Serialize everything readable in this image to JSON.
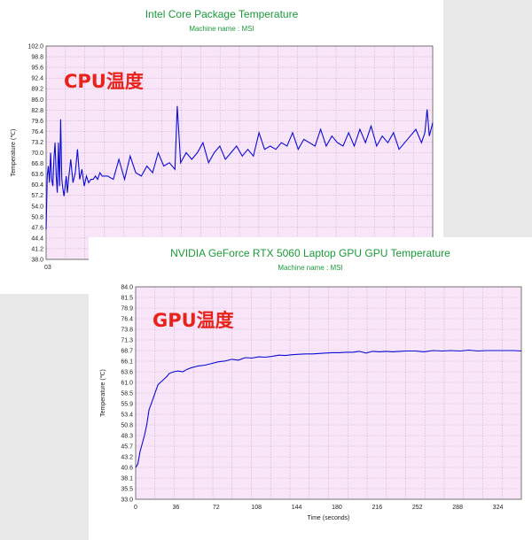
{
  "charts": [
    {
      "id": "cpu",
      "title": "Intel Core Package Temperature",
      "subtitle": "Machine name : MSI",
      "overlay_label": "CPU温度",
      "ylabel": "Temperature (℃)",
      "xlabel": "",
      "line_color": "#0b0bd6",
      "title_color": "#1c9a3a",
      "y_ticks": [
        "102.0",
        "98.8",
        "95.6",
        "92.4",
        "89.2",
        "86.0",
        "82.8",
        "79.6",
        "76.4",
        "73.2",
        "70.0",
        "66.8",
        "63.6",
        "60.4",
        "57.2",
        "54.0",
        "50.8",
        "47.6",
        "44.4",
        "41.2",
        "38.0"
      ],
      "x_ticks_visible": [
        "0",
        "3"
      ]
    },
    {
      "id": "gpu",
      "title": "NVIDIA GeForce RTX 5060 Laptop GPU GPU Temperature",
      "subtitle": "Machine name : MSI",
      "overlay_label": "GPU温度",
      "ylabel": "Temperature (℃)",
      "xlabel": "Time (seconds)",
      "line_color": "#0b0bd6",
      "title_color": "#1c9a3a",
      "y_ticks": [
        "84.0",
        "81.5",
        "78.9",
        "76.4",
        "73.8",
        "71.3",
        "68.7",
        "66.1",
        "63.6",
        "61.0",
        "58.5",
        "55.9",
        "53.4",
        "50.8",
        "48.3",
        "45.7",
        "43.2",
        "40.6",
        "38.1",
        "35.5",
        "33.0"
      ],
      "x_ticks": [
        "0",
        "36",
        "72",
        "108",
        "144",
        "180",
        "216",
        "252",
        "288",
        "324"
      ]
    }
  ],
  "chart_data": [
    {
      "type": "line",
      "title": "Intel Core Package Temperature",
      "subtitle": "Machine name : MSI",
      "ylabel": "Temperature (℃)",
      "ylim": [
        38.0,
        102.0
      ],
      "xlim": [
        0,
        345
      ],
      "grid": true,
      "series": [
        {
          "x": [
            0,
            1,
            2,
            3,
            4,
            5,
            6,
            7,
            8,
            9,
            10,
            11,
            12,
            13,
            14,
            15,
            16,
            17,
            18,
            19,
            20,
            22,
            24,
            26,
            28,
            30,
            32,
            34,
            36,
            38,
            40,
            42,
            44,
            46,
            48,
            50,
            55,
            60,
            65,
            70,
            75,
            80,
            85,
            90,
            95,
            100,
            105,
            110,
            115,
            117,
            120,
            125,
            130,
            135,
            140,
            145,
            150,
            155,
            160,
            165,
            170,
            175,
            180,
            185,
            190,
            195,
            200,
            205,
            210,
            215,
            220,
            225,
            230,
            235,
            240,
            245,
            250,
            255,
            260,
            265,
            270,
            275,
            280,
            285,
            290,
            295,
            300,
            305,
            310,
            315,
            320,
            325,
            330,
            335,
            338,
            340,
            342,
            345
          ],
          "y": [
            47,
            63,
            66,
            61,
            70,
            62,
            60,
            68,
            73,
            63,
            58,
            73,
            60,
            80,
            62,
            59,
            57,
            60,
            63,
            58,
            62,
            68,
            61,
            64,
            71,
            62,
            65,
            60,
            63,
            61,
            62,
            62,
            63,
            62,
            64,
            63,
            63,
            62,
            68,
            62,
            69,
            64,
            63,
            66,
            64,
            70,
            66,
            67,
            65,
            84,
            67,
            70,
            68,
            70,
            73,
            67,
            70,
            72,
            68,
            70,
            72,
            69,
            71,
            69,
            76,
            71,
            72,
            71,
            73,
            72,
            76,
            71,
            74,
            73,
            72,
            77,
            72,
            75,
            73,
            72,
            76,
            72,
            77,
            73,
            78,
            72,
            75,
            73,
            76,
            71,
            73,
            75,
            77,
            73,
            76,
            83,
            75,
            79
          ]
        }
      ]
    },
    {
      "type": "line",
      "title": "NVIDIA GeForce RTX 5060 Laptop GPU GPU Temperature",
      "subtitle": "Machine name : MSI",
      "xlabel": "Time (seconds)",
      "ylabel": "Temperature (℃)",
      "ylim": [
        33.0,
        84.0
      ],
      "xlim": [
        0,
        345
      ],
      "grid": true,
      "series": [
        {
          "x": [
            0,
            2,
            4,
            6,
            8,
            10,
            12,
            14,
            16,
            18,
            20,
            22,
            24,
            26,
            28,
            30,
            34,
            38,
            42,
            46,
            50,
            56,
            62,
            68,
            74,
            80,
            86,
            92,
            98,
            104,
            110,
            116,
            122,
            128,
            134,
            140,
            146,
            152,
            158,
            164,
            170,
            176,
            182,
            188,
            194,
            200,
            206,
            212,
            218,
            224,
            230,
            236,
            242,
            250,
            258,
            266,
            274,
            282,
            290,
            298,
            306,
            314,
            322,
            330,
            338,
            345
          ],
          "y": [
            40.6,
            41.5,
            44.5,
            46.5,
            48.5,
            51.0,
            54.5,
            56.0,
            57.5,
            59.0,
            60.5,
            61.0,
            61.5,
            62.0,
            62.5,
            63.2,
            63.6,
            63.8,
            63.6,
            64.2,
            64.6,
            65.0,
            65.2,
            65.6,
            66.0,
            66.2,
            66.6,
            66.4,
            67.0,
            66.9,
            67.2,
            67.1,
            67.3,
            67.6,
            67.5,
            67.7,
            67.8,
            67.9,
            67.9,
            68.0,
            68.1,
            68.2,
            68.2,
            68.3,
            68.3,
            68.5,
            68.1,
            68.5,
            68.4,
            68.5,
            68.4,
            68.5,
            68.6,
            68.6,
            68.4,
            68.7,
            68.6,
            68.7,
            68.6,
            68.8,
            68.6,
            68.7,
            68.7,
            68.7,
            68.7,
            68.6
          ]
        }
      ]
    }
  ]
}
